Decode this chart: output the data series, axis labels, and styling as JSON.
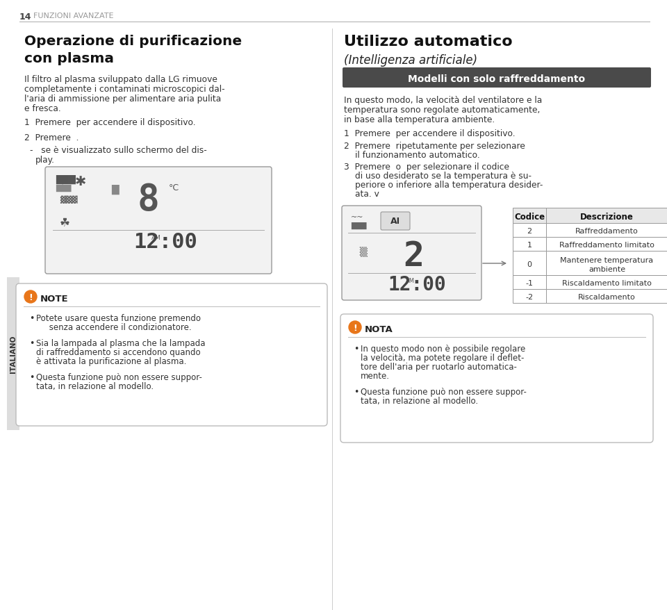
{
  "page_number": "14",
  "header_text": "FUNZIONI AVANZATE",
  "background_color": "#ffffff",
  "header_line_color": "#aaaaaa",
  "sidebar_text": "ITALIANO",
  "left_title": "Operazione di purificazione\ncon plasma",
  "left_body": "Il filtro al plasma sviluppato dalla LG rimuove\ncompletamente i contaminati microscopici dal-\nl'aria di ammissione per alimentare aria pulita\ne fresca.",
  "left_step1": "1  Premere  per accendere il dispositivo.",
  "left_step2": "2  Premere  .",
  "left_step3": "    -   se è visualizzato sullo schermo del dis-\n      play.",
  "note_title": "NOTE",
  "note_bullets": [
    "Potete usare questa funzione premendo\n     senza accendere il condizionatore.",
    "Sia la lampada al plasma che la lampada\ndi raffreddamento si accendono quando\nè attivata la purificazione al plasma.",
    "Questa funzione può non essere suppor-\ntata, in relazione al modello."
  ],
  "right_title1": "Utilizzo automatico",
  "right_title2": "(Intelligenza artificiale)",
  "banner_text": "Modelli con solo raffreddamento",
  "banner_bg": "#4a4a4a",
  "banner_fg": "#ffffff",
  "right_body": "In questo modo, la velocità del ventilatore e la\ntemperatura sono regolate automaticamente,\nin base alla temperatura ambiente.",
  "right_step1": "1  Premere  per accendere il dispositivo.",
  "right_step2": "2  Premere  ripetutamente per selezionare\n    il funzionamento automatico.",
  "right_step3": "3  Premere  o  per selezionare il codice\n    di uso desiderato se la temperatura è su-\n    periore o inferiore alla temperatura desider-\n    ata. v",
  "table_headers": [
    "Codice",
    "Descrizione"
  ],
  "table_rows": [
    [
      "2",
      "Raffreddamento"
    ],
    [
      "1",
      "Raffreddamento limitato"
    ],
    [
      "0",
      "Mantenere temperatura\nambiente"
    ],
    [
      "-1",
      "Riscaldamento limitato"
    ],
    [
      "-2",
      "Riscaldamento"
    ]
  ],
  "nota_title": "NOTA",
  "nota_bullets": [
    "In questo modo non è possibile regolare\nla velocità, ma potete regolare il deflet-\ntore dell'aria per ruotarlo automatica-\nmente.",
    "Questa funzione può non essere suppor-\ntata, in relazione al modello."
  ]
}
